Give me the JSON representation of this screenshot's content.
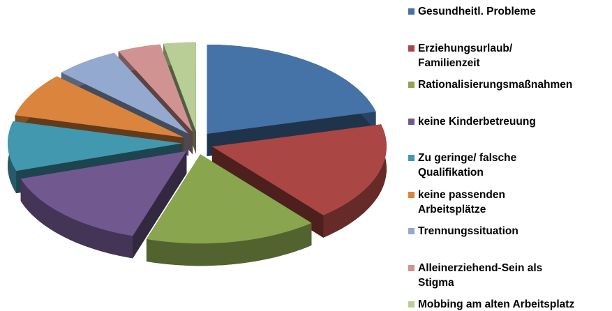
{
  "chart_data": {
    "type": "pie",
    "categories": [
      "Gesundheitl. Probleme",
      "Erziehungsurlaub/\nFamilienzeit",
      "Rationalisierungsmaßnahmen",
      "keine Kinderbetreuung",
      "Zu geringe/ falsche\nQualifikation",
      "keine passenden\nArbeitsplätze",
      "Trennungssituation",
      "Alleinerziehend-Sein als\nStigma",
      "Mobbing am alten Arbeitsplatz"
    ],
    "values": [
      21,
      18,
      16,
      15,
      9,
      8,
      6,
      4,
      3
    ],
    "colors": [
      "#4572a7",
      "#aa4643",
      "#89a54e",
      "#71588f",
      "#4198af",
      "#db843d",
      "#93a9cf",
      "#d19392",
      "#b9cd96"
    ],
    "legend": "right"
  }
}
